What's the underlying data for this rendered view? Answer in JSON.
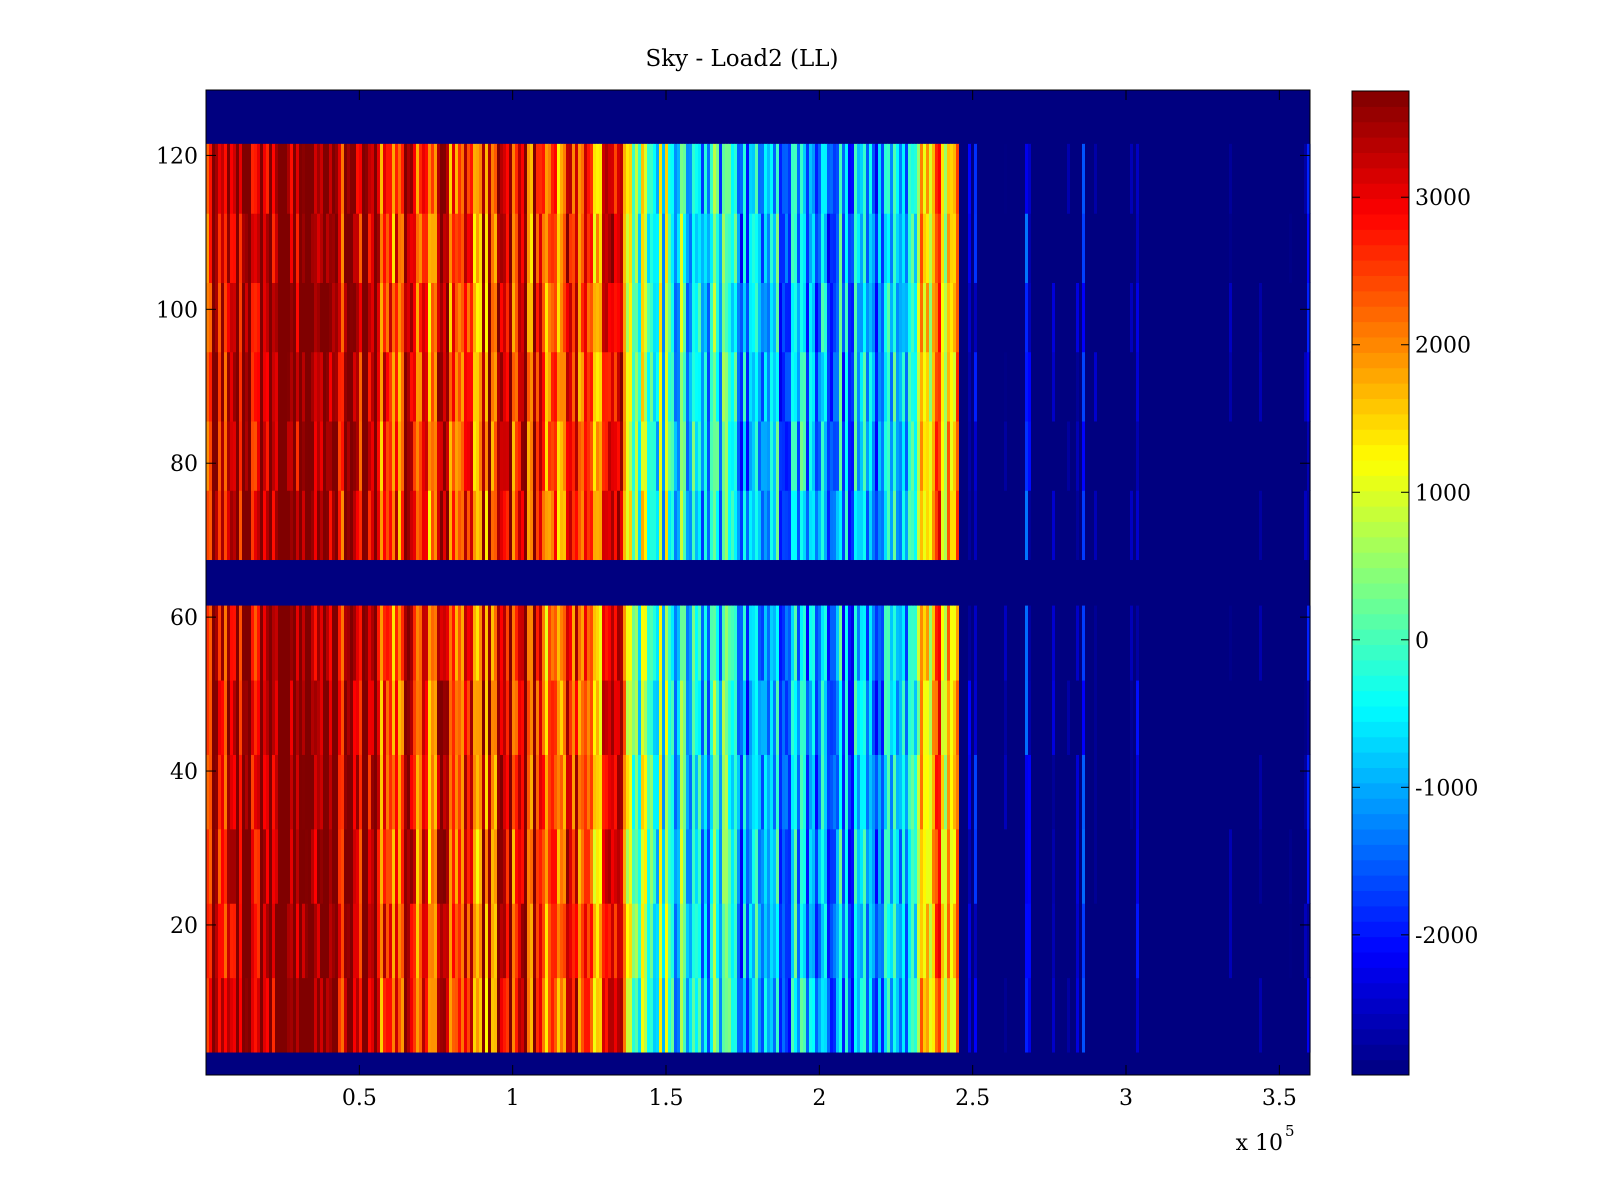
{
  "chart_data": {
    "type": "heatmap",
    "title": "Sky - Load2 (LL)",
    "xlabel": "",
    "ylabel": "",
    "x_scale_note": "x 10",
    "x_scale_exponent": "5",
    "xlim": [
      0,
      3.6
    ],
    "ylim": [
      0.5,
      128.5
    ],
    "x_ticks": [
      {
        "value": 0.5,
        "label": "0.5"
      },
      {
        "value": 1,
        "label": "1"
      },
      {
        "value": 1.5,
        "label": "1.5"
      },
      {
        "value": 2,
        "label": "2"
      },
      {
        "value": 2.5,
        "label": "2.5"
      },
      {
        "value": 3,
        "label": "3"
      },
      {
        "value": 3.5,
        "label": "3.5"
      }
    ],
    "y_ticks": [
      {
        "value": 20,
        "label": "20"
      },
      {
        "value": 40,
        "label": "40"
      },
      {
        "value": 60,
        "label": "60"
      },
      {
        "value": 80,
        "label": "80"
      },
      {
        "value": 100,
        "label": "100"
      },
      {
        "value": 120,
        "label": "120"
      }
    ],
    "colorbar": {
      "colormap": "jet",
      "clim": [
        -2950,
        3720
      ],
      "ticks": [
        {
          "value": 3000,
          "label": "3000"
        },
        {
          "value": 2000,
          "label": "2000"
        },
        {
          "value": 1000,
          "label": "1000"
        },
        {
          "value": 0,
          "label": "0"
        },
        {
          "value": -1000,
          "label": "-1000"
        },
        {
          "value": -2000,
          "label": "-2000"
        }
      ]
    },
    "blank_row_bands": [
      {
        "y_from": 0.5,
        "y_to": 3.5,
        "value": -2950
      },
      {
        "y_from": 61.5,
        "y_to": 67.5,
        "value": -2950
      },
      {
        "y_from": 121.5,
        "y_to": 128.5,
        "value": -2950
      }
    ],
    "column_profile": [
      {
        "x": 0.0,
        "value": 3300
      },
      {
        "x": 0.1,
        "value": 3600
      },
      {
        "x": 0.3,
        "value": 3650
      },
      {
        "x": 0.55,
        "value": 3200
      },
      {
        "x": 0.6,
        "value": 2500
      },
      {
        "x": 0.75,
        "value": 2700
      },
      {
        "x": 0.9,
        "value": 2600
      },
      {
        "x": 1.05,
        "value": 3000
      },
      {
        "x": 1.1,
        "value": 2300
      },
      {
        "x": 1.25,
        "value": 2200
      },
      {
        "x": 1.35,
        "value": 2600
      },
      {
        "x": 1.4,
        "value": 400
      },
      {
        "x": 1.6,
        "value": -300
      },
      {
        "x": 1.8,
        "value": -900
      },
      {
        "x": 2.0,
        "value": -1200
      },
      {
        "x": 2.2,
        "value": -1100
      },
      {
        "x": 2.3,
        "value": -300
      },
      {
        "x": 2.35,
        "value": 1700
      },
      {
        "x": 2.45,
        "value": 1600
      },
      {
        "x": 2.46,
        "value": -2500
      },
      {
        "x": 2.7,
        "value": -2600
      },
      {
        "x": 2.9,
        "value": -2800
      },
      {
        "x": 3.2,
        "value": -2850
      },
      {
        "x": 3.6,
        "value": -2900
      }
    ]
  }
}
